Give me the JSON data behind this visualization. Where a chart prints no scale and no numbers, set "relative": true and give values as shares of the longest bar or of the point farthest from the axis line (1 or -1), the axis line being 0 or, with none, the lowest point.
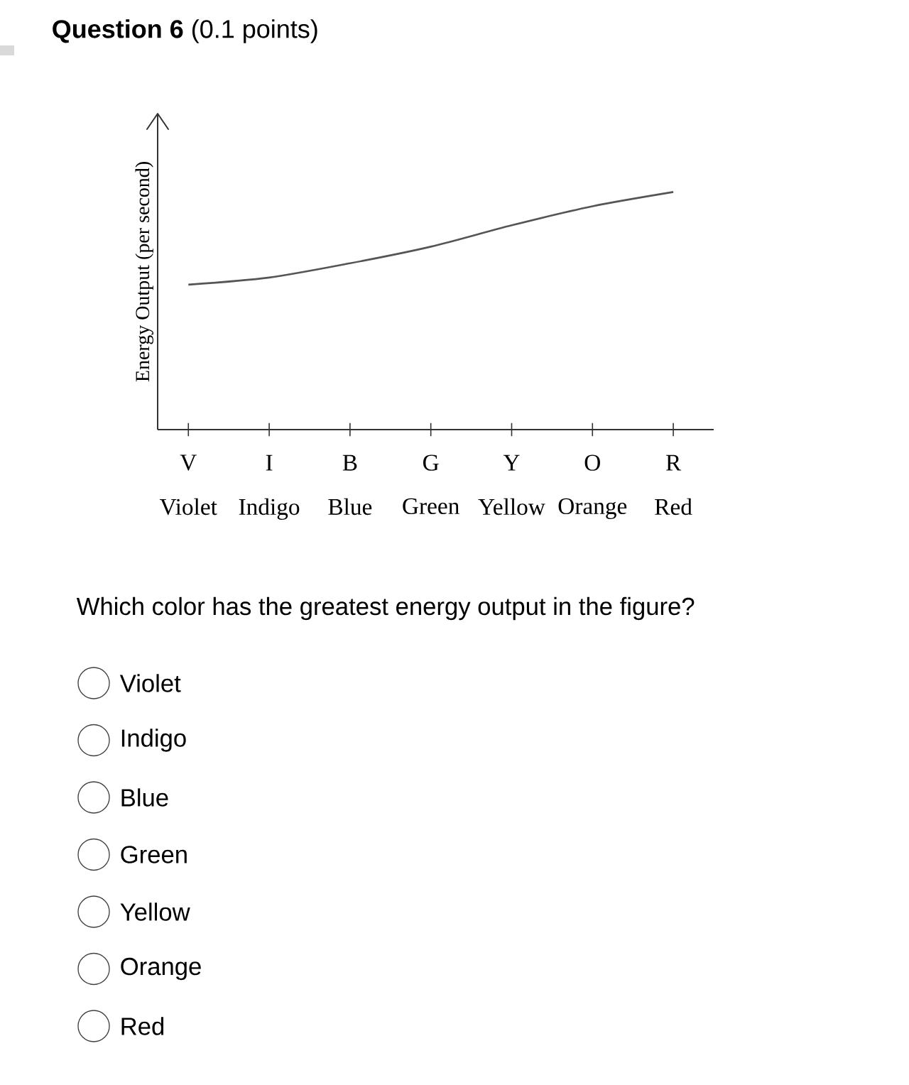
{
  "chart_data": {
    "type": "line",
    "title": "**Question 6** (0.1 points)",
    "ylabel": "Energy Output (per second)",
    "relative": true,
    "categories": [
      "Violet",
      "Indigo",
      "Blue",
      "Green",
      "Yellow",
      "Orange",
      "Red"
    ],
    "series": [
      {
        "color": "#555555",
        "values": [
          0.61,
          0.64,
          0.7,
          0.77,
          0.86,
          0.94,
          1
        ]
      }
    ],
    "marker": "none",
    "line_style": "solid",
    "annotations": [
      {
        "text": "V",
        "x": "Violet"
      },
      {
        "text": "I",
        "x": "Indigo"
      },
      {
        "text": "B",
        "x": "Blue"
      },
      {
        "text": "G",
        "x": "Green"
      },
      {
        "text": "Y",
        "x": "Yellow"
      },
      {
        "text": "O",
        "x": "Orange"
      },
      {
        "text": "R",
        "x": "Red"
      },
      "Which color has the greatest energy output in the figure?",
      "Violet",
      "Indigo",
      "Blue",
      "Green",
      "Yellow",
      "Orange",
      "Red"
    ]
  }
}
